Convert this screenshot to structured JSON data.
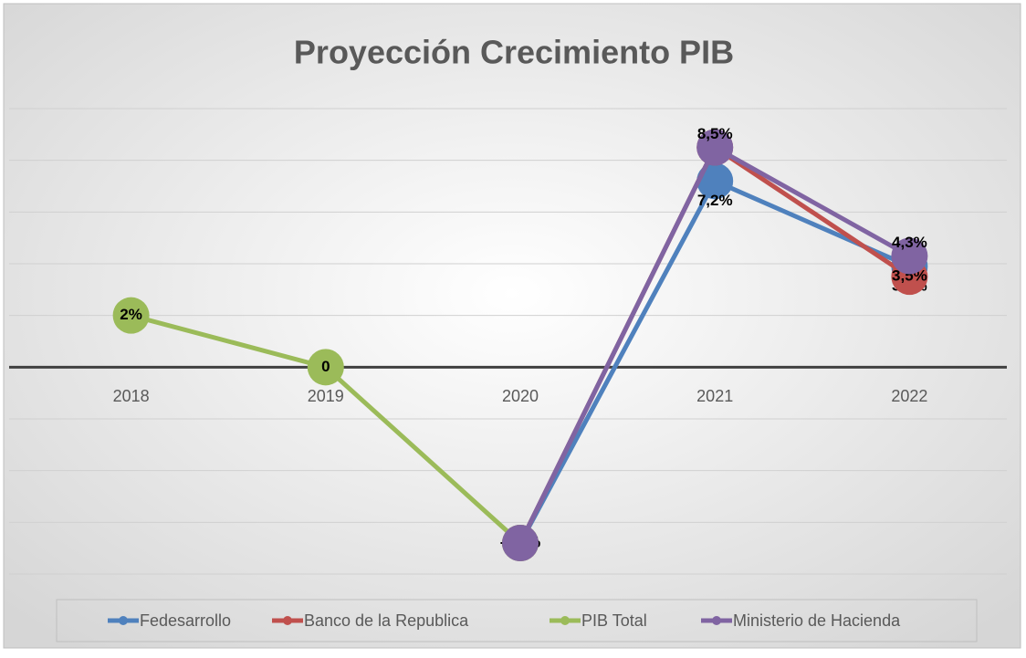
{
  "chart_data": {
    "type": "line",
    "title": "Proyección Crecimiento PIB",
    "categories": [
      "2018",
      "2019",
      "2020",
      "2021",
      "2022"
    ],
    "ylim": [
      -8,
      10
    ],
    "yticks": [
      -8,
      -6,
      -4,
      -2,
      0,
      2,
      4,
      6,
      8,
      10
    ],
    "grid": true,
    "legend": "bottom",
    "series": [
      {
        "name": "Fedesarrollo",
        "color": "#4f81bd",
        "values": [
          null,
          null,
          -6.8,
          7.2,
          3.9
        ],
        "value_labels": [
          null,
          null,
          null,
          "7,2%",
          "3,9%"
        ]
      },
      {
        "name": "Banco de la Republica",
        "color": "#c0504d",
        "values": [
          null,
          null,
          -6.8,
          8.5,
          3.5
        ],
        "value_labels": [
          null,
          null,
          null,
          "8,5%",
          "3,5%"
        ]
      },
      {
        "name": "PIB Total",
        "color": "#9bbb59",
        "values": [
          2,
          0,
          -6.8,
          null,
          null
        ],
        "value_labels": [
          "2%",
          "0",
          "-6,8%",
          null,
          null
        ]
      },
      {
        "name": "Ministerio de Hacienda",
        "color": "#8064a2",
        "values": [
          null,
          null,
          -6.8,
          8.5,
          4.3
        ],
        "value_labels": [
          null,
          null,
          null,
          "8,5%",
          "4,3%"
        ]
      }
    ]
  }
}
